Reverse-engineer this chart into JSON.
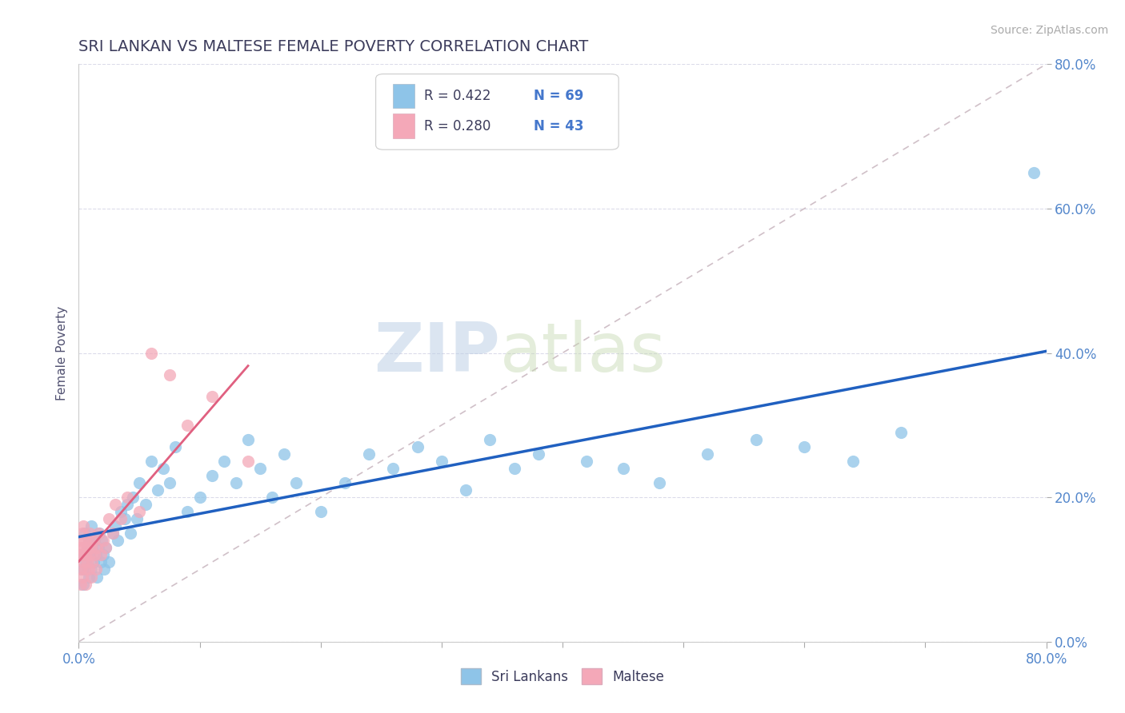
{
  "title": "SRI LANKAN VS MALTESE FEMALE POVERTY CORRELATION CHART",
  "source_text": "Source: ZipAtlas.com",
  "ylabel": "Female Poverty",
  "xlim": [
    0,
    0.8
  ],
  "ylim": [
    0,
    0.8
  ],
  "ytick_positions": [
    0.0,
    0.2,
    0.4,
    0.6,
    0.8
  ],
  "ytick_labels": [
    "0.0%",
    "20.0%",
    "40.0%",
    "60.0%",
    "80.0%"
  ],
  "sri_lankan_color": "#8ec4e8",
  "maltese_color": "#f4a8b8",
  "sri_lankan_line_color": "#2060c0",
  "maltese_line_color": "#e06080",
  "ref_line_color": "#d0c0c8",
  "grid_color": "#d8d8e8",
  "legend_R1": "R = 0.422",
  "legend_N1": "N = 69",
  "legend_R2": "R = 0.280",
  "legend_N2": "N = 43",
  "legend_label1": "Sri Lankans",
  "legend_label2": "Maltese",
  "watermark_ZIP": "ZIP",
  "watermark_atlas": "atlas",
  "title_color": "#3c3c5c",
  "axis_label_color": "#505070",
  "tick_label_color": "#5588cc",
  "source_color": "#aaaaaa",
  "legend_text_color": "#3c3c5c",
  "legend_N_color": "#4477cc",
  "sl_x": [
    0.002,
    0.003,
    0.004,
    0.005,
    0.006,
    0.007,
    0.008,
    0.008,
    0.009,
    0.01,
    0.01,
    0.011,
    0.012,
    0.013,
    0.014,
    0.015,
    0.016,
    0.017,
    0.018,
    0.019,
    0.02,
    0.021,
    0.022,
    0.025,
    0.028,
    0.03,
    0.032,
    0.035,
    0.038,
    0.04,
    0.043,
    0.045,
    0.048,
    0.05,
    0.055,
    0.06,
    0.065,
    0.07,
    0.075,
    0.08,
    0.09,
    0.1,
    0.11,
    0.12,
    0.13,
    0.14,
    0.15,
    0.16,
    0.17,
    0.18,
    0.2,
    0.22,
    0.24,
    0.26,
    0.28,
    0.3,
    0.32,
    0.34,
    0.36,
    0.38,
    0.42,
    0.45,
    0.48,
    0.52,
    0.56,
    0.6,
    0.64,
    0.68,
    0.79
  ],
  "sl_y": [
    0.12,
    0.1,
    0.08,
    0.15,
    0.11,
    0.13,
    0.09,
    0.14,
    0.12,
    0.1,
    0.16,
    0.13,
    0.11,
    0.14,
    0.12,
    0.09,
    0.13,
    0.15,
    0.11,
    0.14,
    0.12,
    0.1,
    0.13,
    0.11,
    0.15,
    0.16,
    0.14,
    0.18,
    0.17,
    0.19,
    0.15,
    0.2,
    0.17,
    0.22,
    0.19,
    0.25,
    0.21,
    0.24,
    0.22,
    0.27,
    0.18,
    0.2,
    0.23,
    0.25,
    0.22,
    0.28,
    0.24,
    0.2,
    0.26,
    0.22,
    0.18,
    0.22,
    0.26,
    0.24,
    0.27,
    0.25,
    0.21,
    0.28,
    0.24,
    0.26,
    0.25,
    0.24,
    0.22,
    0.26,
    0.28,
    0.27,
    0.25,
    0.29,
    0.65
  ],
  "mt_x": [
    0.001,
    0.001,
    0.002,
    0.002,
    0.002,
    0.003,
    0.003,
    0.003,
    0.004,
    0.004,
    0.004,
    0.005,
    0.005,
    0.006,
    0.006,
    0.007,
    0.007,
    0.008,
    0.008,
    0.009,
    0.009,
    0.01,
    0.01,
    0.011,
    0.012,
    0.013,
    0.014,
    0.015,
    0.016,
    0.018,
    0.02,
    0.022,
    0.025,
    0.028,
    0.03,
    0.035,
    0.04,
    0.05,
    0.06,
    0.075,
    0.09,
    0.11,
    0.14
  ],
  "mt_y": [
    0.12,
    0.13,
    0.1,
    0.14,
    0.08,
    0.12,
    0.15,
    0.09,
    0.11,
    0.13,
    0.16,
    0.1,
    0.14,
    0.12,
    0.08,
    0.13,
    0.11,
    0.14,
    0.1,
    0.12,
    0.15,
    0.09,
    0.13,
    0.11,
    0.14,
    0.12,
    0.1,
    0.13,
    0.15,
    0.12,
    0.14,
    0.13,
    0.17,
    0.15,
    0.19,
    0.17,
    0.2,
    0.18,
    0.4,
    0.37,
    0.3,
    0.34,
    0.25
  ]
}
